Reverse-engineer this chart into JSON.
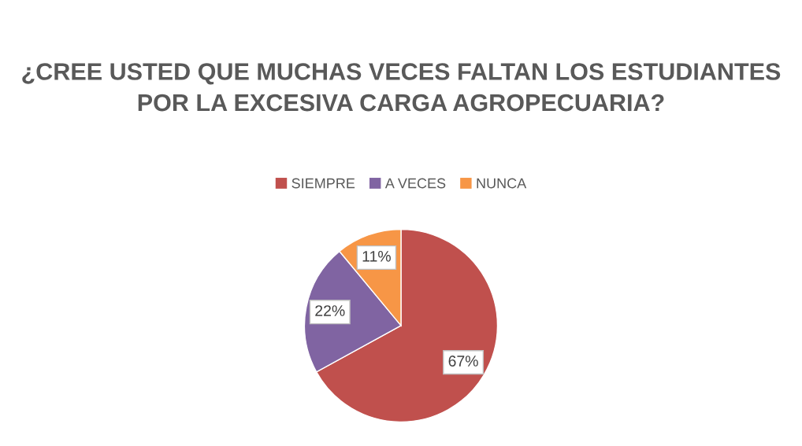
{
  "chart_data": {
    "type": "pie",
    "title": "¿CREE USTED QUE MUCHAS VECES FALTAN LOS ESTUDIANTES POR LA EXCESIVA CARGA AGROPECUARIA?",
    "categories": [
      "SIEMPRE",
      "A VECES",
      "NUNCA"
    ],
    "values": [
      67,
      22,
      11
    ],
    "colors": [
      "#c0504d",
      "#8064a2",
      "#f79646"
    ],
    "value_labels": [
      "67%",
      "22%",
      "11%"
    ],
    "legend": "top"
  }
}
